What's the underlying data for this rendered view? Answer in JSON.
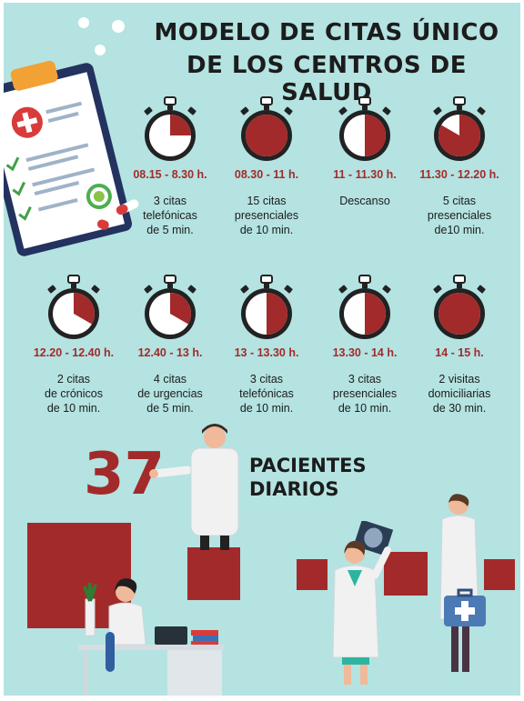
{
  "title": {
    "line1": "MODELO DE CITAS ÚNICO",
    "line2": "DE LOS CENTROS DE SALUD"
  },
  "colors": {
    "background": "#b4e3e1",
    "accent": "#a32a2a",
    "text": "#1c1c1c"
  },
  "schedule": [
    {
      "time": "08.15 - 8.30 h.",
      "desc": "3 citas\ntelefónicas\nde  5 min.",
      "minutes": 15
    },
    {
      "time": "08.30 - 11 h.",
      "desc": "15 citas\npresenciales\nde 10 min.",
      "minutes": 150
    },
    {
      "time": "11 - 11.30 h.",
      "desc": "Descanso",
      "minutes": 30
    },
    {
      "time": "11.30 - 12.20 h.",
      "desc": "5 citas\npresenciales\nde10 min.",
      "minutes": 50
    },
    {
      "time": "12.20 - 12.40 h.",
      "desc": "2 citas\nde crónicos\nde 10 min.",
      "minutes": 20
    },
    {
      "time": "12.40 - 13 h.",
      "desc": "4 citas\nde urgencias\nde 5 min.",
      "minutes": 20
    },
    {
      "time": "13 - 13.30 h.",
      "desc": "3 citas\ntelefónicas\nde 10 min.",
      "minutes": 30
    },
    {
      "time": "13.30 - 14 h.",
      "desc": "3 citas\npresenciales\nde 10 min.",
      "minutes": 30
    },
    {
      "time": "14 - 15 h.",
      "desc": "2 visitas\ndomiciliarias\nde 30 min.",
      "minutes": 60
    }
  ],
  "summary": {
    "number": "37",
    "line1": "PACIENTES",
    "line2": "DIARIOS"
  },
  "icons": [
    "clipboard-icon",
    "pills-icon",
    "stopwatch-icon",
    "doctor-icon",
    "laptop-icon",
    "xray-icon",
    "briefcase-icon"
  ]
}
